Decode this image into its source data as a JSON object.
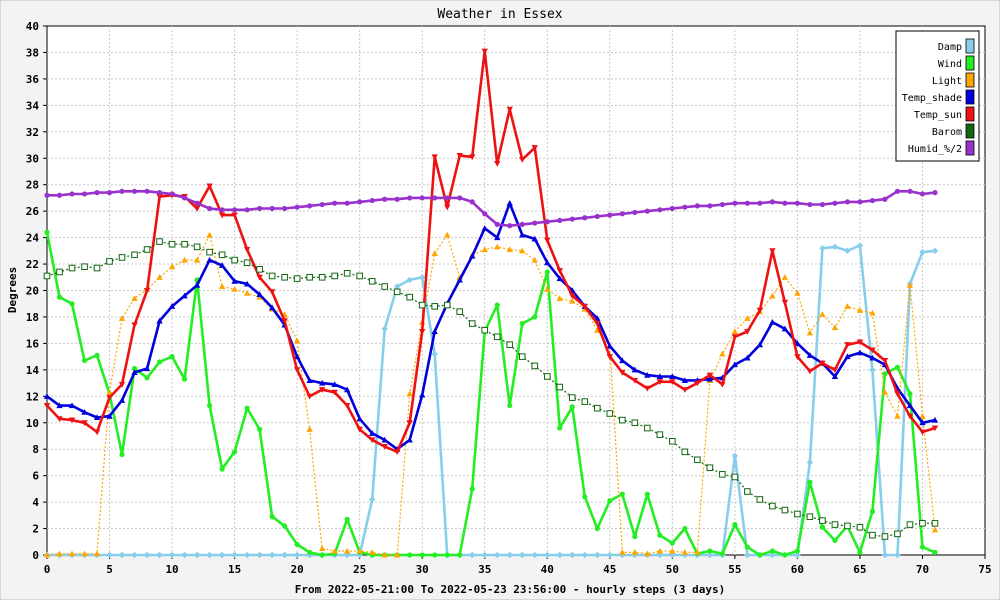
{
  "chart_data": {
    "type": "line",
    "title": "Weather in Essex",
    "xlabel": "From 2022-05-21:00 To 2022-05-23 23:56:00 - hourly steps (3 days)",
    "ylabel": "Degrees",
    "xlim": [
      0,
      75
    ],
    "ylim": [
      0,
      40
    ],
    "xticks": [
      0,
      5,
      10,
      15,
      20,
      25,
      30,
      35,
      40,
      45,
      50,
      55,
      60,
      65,
      70,
      75
    ],
    "yticks": [
      0,
      2,
      4,
      6,
      8,
      10,
      12,
      14,
      16,
      18,
      20,
      22,
      24,
      26,
      28,
      30,
      32,
      34,
      36,
      38,
      40
    ],
    "grid": true,
    "legend_position": "top-right",
    "series": [
      {
        "name": "Damp",
        "color": "#87ceeb",
        "marker": "diamond",
        "dash": "",
        "values": [
          0,
          0,
          0,
          0,
          0,
          0,
          0,
          0,
          0,
          0,
          0,
          0,
          0,
          0,
          0,
          0,
          0,
          0,
          0,
          0,
          0,
          0,
          0,
          0,
          0,
          0,
          4.2,
          17.1,
          20.3,
          20.8,
          21,
          15.2,
          0,
          0,
          0,
          0,
          0,
          0,
          0,
          0,
          0,
          0,
          0,
          0,
          0,
          0,
          0,
          0,
          0,
          0,
          0,
          0,
          0,
          0,
          0,
          7.5,
          0,
          0,
          0,
          0,
          0,
          7,
          23.2,
          23.3,
          23,
          23.4,
          14,
          0,
          0,
          20.5,
          22.9,
          23
        ]
      },
      {
        "name": "Wind",
        "color": "#22ee22",
        "marker": "circle",
        "dash": "",
        "values": [
          24.4,
          19.5,
          19,
          14.7,
          15.1,
          12.2,
          7.6,
          14.1,
          13.4,
          14.6,
          15,
          13.3,
          20.8,
          11.3,
          6.5,
          7.8,
          11.1,
          9.5,
          2.9,
          2.2,
          0.8,
          0.2,
          0,
          0.1,
          2.7,
          0.2,
          0,
          0,
          0,
          0,
          0,
          0,
          0,
          0,
          5,
          16.9,
          18.9,
          11.3,
          17.5,
          18,
          21.4,
          9.6,
          11.2,
          4.4,
          2,
          4.1,
          4.6,
          1.4,
          4.6,
          1.5,
          0.9,
          2,
          0.1,
          0.3,
          0.1,
          2.3,
          0.6,
          0,
          0.3,
          0,
          0.3,
          5.5,
          2.1,
          1.1,
          2.2,
          0.2,
          3.3,
          13.7,
          14.2,
          12.2,
          0.6,
          0.2
        ]
      },
      {
        "name": "Light",
        "color": "#ffa500",
        "marker": "triangle-up",
        "dash": "2,2",
        "values": [
          0,
          0.1,
          0.1,
          0.1,
          0.1,
          12.3,
          17.9,
          19.4,
          20.1,
          21,
          21.8,
          22.3,
          22.3,
          24.2,
          20.3,
          20.1,
          19.8,
          19.5,
          18.6,
          18.2,
          16.2,
          9.5,
          0.5,
          0.3,
          0.3,
          0.3,
          0.2,
          0,
          0,
          12.2,
          17.6,
          22.8,
          24.2,
          21,
          22.7,
          23.1,
          23.3,
          23.1,
          23,
          22.3,
          20.1,
          19.4,
          19.2,
          18.6,
          17,
          15.8,
          0.2,
          0.2,
          0.1,
          0.3,
          0.3,
          0.2,
          0.2,
          13.2,
          15.2,
          16.9,
          17.9,
          18.4,
          19.6,
          21,
          19.8,
          16.8,
          18.2,
          17.2,
          18.8,
          18.5,
          18.3,
          12.3,
          10.5,
          20.4,
          10.5,
          1.9
        ]
      },
      {
        "name": "Temp_shade",
        "color": "#0000dd",
        "marker": "triangle-up",
        "dash": "",
        "values": [
          12,
          11.3,
          11.3,
          10.8,
          10.4,
          10.5,
          11.7,
          13.8,
          14.1,
          17.7,
          18.8,
          19.6,
          20.4,
          22.3,
          21.9,
          20.7,
          20.5,
          19.7,
          18.7,
          17.4,
          15,
          13.2,
          13,
          12.9,
          12.5,
          10.3,
          9.2,
          8.7,
          8,
          8.7,
          12.1,
          16.9,
          19,
          20.8,
          22.6,
          24.7,
          24,
          26.6,
          24.2,
          23.9,
          22.1,
          20.9,
          20,
          18.8,
          17.9,
          15.8,
          14.7,
          14,
          13.6,
          13.5,
          13.5,
          13.2,
          13.2,
          13.3,
          13.4,
          14.4,
          14.9,
          15.9,
          17.6,
          17.1,
          16,
          15.1,
          14.5,
          13.5,
          15,
          15.3,
          14.9,
          14.4,
          12.6,
          11.3,
          10,
          10.2
        ]
      },
      {
        "name": "Temp_sun",
        "color": "#ee1111",
        "marker": "triangle-down",
        "dash": "",
        "values": [
          11.3,
          10.3,
          10.2,
          10,
          9.3,
          11.9,
          12.9,
          17.4,
          20,
          27.1,
          27.2,
          27.1,
          26.2,
          27.9,
          25.7,
          25.7,
          23.1,
          21,
          19.9,
          17.7,
          14,
          12,
          12.5,
          12.3,
          11.3,
          9.5,
          8.7,
          8.2,
          7.8,
          10,
          16.9,
          30.1,
          26.3,
          30.2,
          30.1,
          38.1,
          29.6,
          33.7,
          29.9,
          30.8,
          23.8,
          21.5,
          19.6,
          18.8,
          17.5,
          15,
          13.8,
          13.2,
          12.6,
          13.1,
          13.1,
          12.5,
          13,
          13.6,
          12.9,
          16.5,
          16.9,
          18.5,
          23,
          19.1,
          15,
          13.9,
          14.5,
          14,
          15.9,
          16.1,
          15.5,
          14.7,
          12.2,
          10.5,
          9.3,
          9.6
        ]
      },
      {
        "name": "Barom",
        "color": "#116611",
        "marker": "open-square",
        "dash": "2,2",
        "values": [
          21.1,
          21.4,
          21.7,
          21.8,
          21.7,
          22.2,
          22.5,
          22.7,
          23.1,
          23.7,
          23.5,
          23.5,
          23.3,
          22.9,
          22.7,
          22.3,
          22.1,
          21.6,
          21.1,
          21,
          20.9,
          21,
          21,
          21.1,
          21.3,
          21.1,
          20.7,
          20.3,
          19.9,
          19.5,
          18.9,
          18.8,
          18.9,
          18.4,
          17.5,
          17,
          16.5,
          15.9,
          15,
          14.3,
          13.5,
          12.7,
          11.9,
          11.6,
          11.1,
          10.7,
          10.2,
          10,
          9.6,
          9.1,
          8.6,
          7.8,
          7.2,
          6.6,
          6.1,
          5.9,
          4.8,
          4.2,
          3.7,
          3.4,
          3.1,
          2.9,
          2.6,
          2.3,
          2.2,
          2.1,
          1.5,
          1.4,
          1.6,
          2.3,
          2.4,
          2.4
        ]
      },
      {
        "name": "Humid_%/2",
        "color": "#9932cc",
        "marker": "circle",
        "dash": "",
        "values": [
          27.2,
          27.2,
          27.3,
          27.3,
          27.4,
          27.4,
          27.5,
          27.5,
          27.5,
          27.4,
          27.3,
          27,
          26.6,
          26.2,
          26.1,
          26.1,
          26.1,
          26.2,
          26.2,
          26.2,
          26.3,
          26.4,
          26.5,
          26.6,
          26.6,
          26.7,
          26.8,
          26.9,
          26.9,
          27,
          27,
          27,
          27,
          27,
          26.7,
          25.8,
          25,
          24.9,
          25,
          25.1,
          25.2,
          25.3,
          25.4,
          25.5,
          25.6,
          25.7,
          25.8,
          25.9,
          26,
          26.1,
          26.2,
          26.3,
          26.4,
          26.4,
          26.5,
          26.6,
          26.6,
          26.6,
          26.7,
          26.6,
          26.6,
          26.5,
          26.5,
          26.6,
          26.7,
          26.7,
          26.8,
          26.9,
          27.5,
          27.5,
          27.3,
          27.4
        ]
      }
    ]
  }
}
